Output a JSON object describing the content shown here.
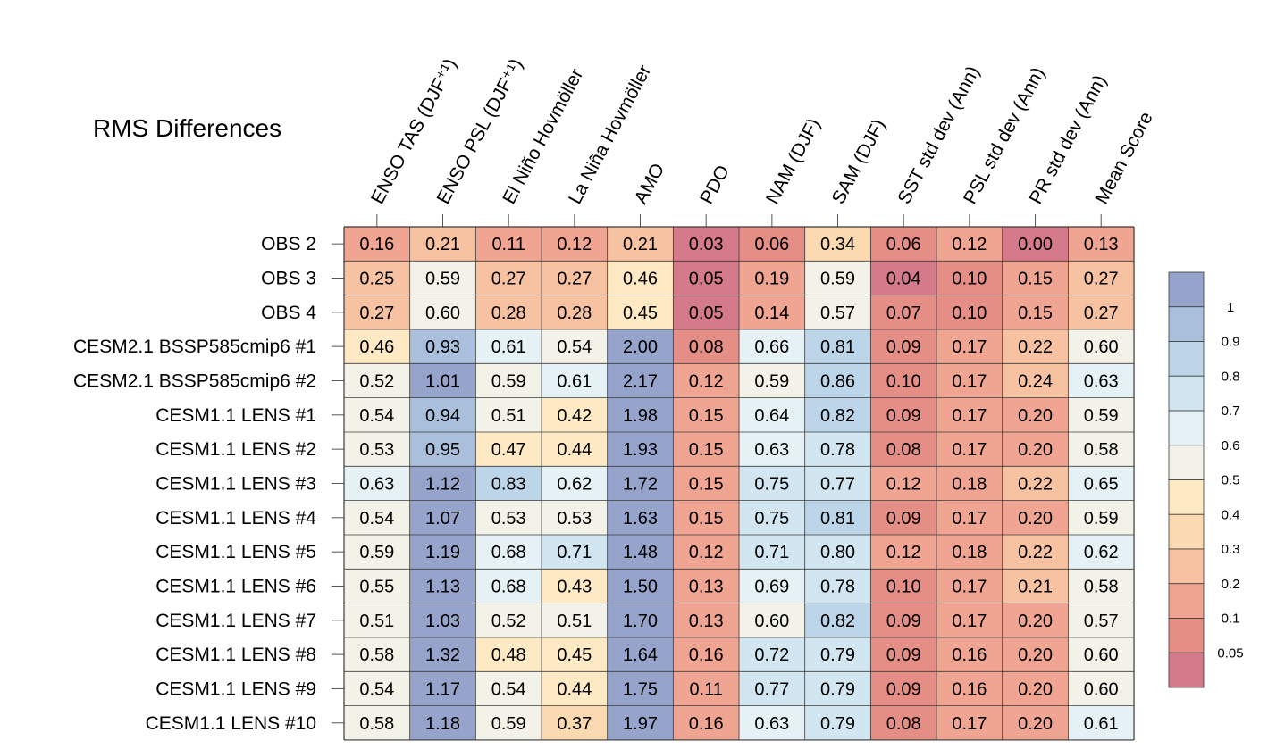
{
  "chart_data": {
    "type": "heatmap",
    "title": "RMS Differences",
    "columns": [
      "ENSO TAS (DJF⁺¹)",
      "ENSO PSL (DJF⁺¹)",
      "El Niño Hovmöller",
      "La Niña Hovmöller",
      "AMO",
      "PDO",
      "NAM (DJF)",
      "SAM (DJF)",
      "SST std dev (Ann)",
      "PSL std dev (Ann)",
      "PR std dev (Ann)",
      "Mean Score"
    ],
    "rows": [
      "OBS 2",
      "OBS 3",
      "OBS 4",
      "CESM2.1 BSSP585cmip6 #1",
      "CESM2.1 BSSP585cmip6 #2",
      "CESM1.1 LENS #1",
      "CESM1.1 LENS #2",
      "CESM1.1 LENS #3",
      "CESM1.1 LENS #4",
      "CESM1.1 LENS #5",
      "CESM1.1 LENS #6",
      "CESM1.1 LENS #7",
      "CESM1.1 LENS #8",
      "CESM1.1 LENS #9",
      "CESM1.1 LENS #10"
    ],
    "values": [
      [
        "0.16",
        "0.21",
        "0.11",
        "0.12",
        "0.21",
        "0.03",
        "0.06",
        "0.34",
        "0.06",
        "0.12",
        "0.00",
        "0.13"
      ],
      [
        "0.25",
        "0.59",
        "0.27",
        "0.27",
        "0.46",
        "0.05",
        "0.19",
        "0.59",
        "0.04",
        "0.10",
        "0.15",
        "0.27"
      ],
      [
        "0.27",
        "0.60",
        "0.28",
        "0.28",
        "0.45",
        "0.05",
        "0.14",
        "0.57",
        "0.07",
        "0.10",
        "0.15",
        "0.27"
      ],
      [
        "0.46",
        "0.93",
        "0.61",
        "0.54",
        "2.00",
        "0.08",
        "0.66",
        "0.81",
        "0.09",
        "0.17",
        "0.22",
        "0.60"
      ],
      [
        "0.52",
        "1.01",
        "0.59",
        "0.61",
        "2.17",
        "0.12",
        "0.59",
        "0.86",
        "0.10",
        "0.17",
        "0.24",
        "0.63"
      ],
      [
        "0.54",
        "0.94",
        "0.51",
        "0.42",
        "1.98",
        "0.15",
        "0.64",
        "0.82",
        "0.09",
        "0.17",
        "0.20",
        "0.59"
      ],
      [
        "0.53",
        "0.95",
        "0.47",
        "0.44",
        "1.93",
        "0.15",
        "0.63",
        "0.78",
        "0.08",
        "0.17",
        "0.20",
        "0.58"
      ],
      [
        "0.63",
        "1.12",
        "0.83",
        "0.62",
        "1.72",
        "0.15",
        "0.75",
        "0.77",
        "0.12",
        "0.18",
        "0.22",
        "0.65"
      ],
      [
        "0.54",
        "1.07",
        "0.53",
        "0.53",
        "1.63",
        "0.15",
        "0.75",
        "0.81",
        "0.09",
        "0.17",
        "0.20",
        "0.59"
      ],
      [
        "0.59",
        "1.19",
        "0.68",
        "0.71",
        "1.48",
        "0.12",
        "0.71",
        "0.80",
        "0.12",
        "0.18",
        "0.22",
        "0.62"
      ],
      [
        "0.55",
        "1.13",
        "0.68",
        "0.43",
        "1.50",
        "0.13",
        "0.69",
        "0.78",
        "0.10",
        "0.17",
        "0.21",
        "0.58"
      ],
      [
        "0.51",
        "1.03",
        "0.52",
        "0.51",
        "1.70",
        "0.13",
        "0.60",
        "0.82",
        "0.09",
        "0.17",
        "0.20",
        "0.57"
      ],
      [
        "0.58",
        "1.32",
        "0.48",
        "0.45",
        "1.64",
        "0.16",
        "0.72",
        "0.79",
        "0.09",
        "0.16",
        "0.20",
        "0.60"
      ],
      [
        "0.54",
        "1.17",
        "0.54",
        "0.44",
        "1.75",
        "0.11",
        "0.77",
        "0.79",
        "0.09",
        "0.16",
        "0.20",
        "0.60"
      ],
      [
        "0.58",
        "1.18",
        "0.59",
        "0.37",
        "1.97",
        "0.16",
        "0.63",
        "0.79",
        "0.08",
        "0.17",
        "0.20",
        "0.61"
      ]
    ],
    "colorbar": {
      "boundaries": [
        1,
        0.9,
        0.8,
        0.7,
        0.6,
        0.5,
        0.4,
        0.3,
        0.2,
        0.1,
        0.05
      ],
      "tick_labels": [
        "1",
        "0.9",
        "0.8",
        "0.7",
        "0.6",
        "0.5",
        "0.4",
        "0.3",
        "0.2",
        "0.1",
        "0.05"
      ],
      "colors_top_to_bottom": [
        "#96a4cc",
        "#a9bfdc",
        "#bdd5e8",
        "#d2e6f1",
        "#e5f1f5",
        "#f3f2e8",
        "#fde9c3",
        "#fbd9b1",
        "#f7c2a2",
        "#f0a592",
        "#e58e86",
        "#d57a8a"
      ]
    }
  }
}
